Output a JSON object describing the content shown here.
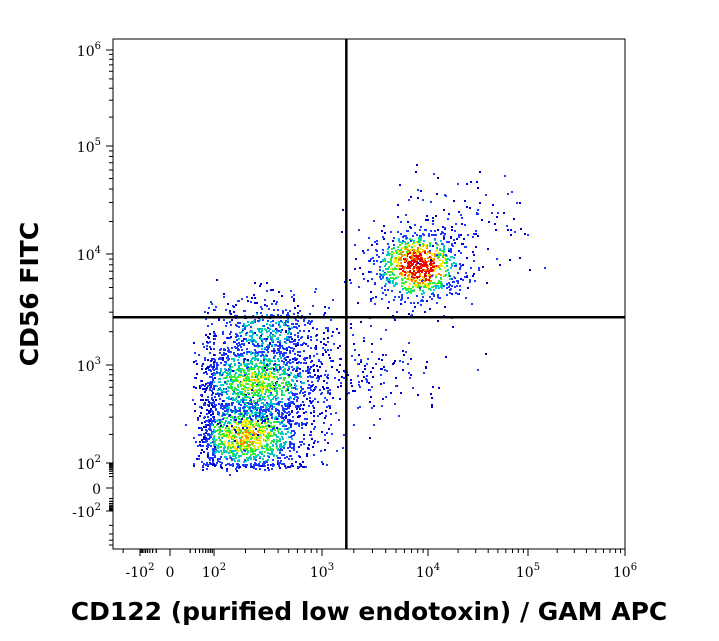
{
  "chart_data": {
    "type": "scatter",
    "title": "",
    "xlabel": "CD122 (purified low endotoxin) / GAM APC",
    "ylabel": "CD56 FITC",
    "x_scale": "biexponential",
    "y_scale": "biexponential",
    "xlim": [
      -300,
      1000000
    ],
    "ylim": [
      -600,
      1000000
    ],
    "grid": false,
    "density_colors": [
      "#0000cc",
      "#1e3cff",
      "#00c8c8",
      "#33ee33",
      "#ffee00",
      "#ff8800",
      "#ee0000"
    ],
    "x_ticks": [
      {
        "value": -100,
        "base": "-10",
        "exp": "2"
      },
      {
        "value": 0,
        "base": "0",
        "exp": ""
      },
      {
        "value": 100,
        "base": "10",
        "exp": "2"
      },
      {
        "value": 1000,
        "base": "10",
        "exp": "3"
      },
      {
        "value": 10000,
        "base": "10",
        "exp": "4"
      },
      {
        "value": 100000,
        "base": "10",
        "exp": "5"
      },
      {
        "value": 1000000,
        "base": "10",
        "exp": "6"
      }
    ],
    "y_ticks": [
      {
        "value": -100,
        "base": "-10",
        "exp": "2"
      },
      {
        "value": 0,
        "base": "0",
        "exp": ""
      },
      {
        "value": 100,
        "base": "10",
        "exp": "2"
      },
      {
        "value": 1000,
        "base": "10",
        "exp": "3"
      },
      {
        "value": 10000,
        "base": "10",
        "exp": "4"
      },
      {
        "value": 100000,
        "base": "10",
        "exp": "5"
      },
      {
        "value": 1000000,
        "base": "10",
        "exp": "6"
      }
    ],
    "quadrant_gate": {
      "x": 1700,
      "y": 2700
    },
    "populations": [
      {
        "label": "",
        "center": [
          200,
          200
        ],
        "spread": [
          0.3,
          0.22
        ],
        "count": 1300,
        "peak_density": 0.65
      },
      {
        "label": "",
        "center": [
          250,
          700
        ],
        "spread": [
          0.33,
          0.22
        ],
        "count": 1300,
        "peak_density": 0.55
      },
      {
        "label": "",
        "center": [
          300,
          2000
        ],
        "spread": [
          0.3,
          0.18
        ],
        "count": 450,
        "peak_density": 0.35
      },
      {
        "label": "",
        "center": [
          8000,
          8000
        ],
        "spread": [
          0.22,
          0.17
        ],
        "count": 900,
        "peak_density": 1.0
      },
      {
        "label": "",
        "center": [
          2500,
          800
        ],
        "spread": [
          0.4,
          0.2
        ],
        "count": 150,
        "peak_density": 0.1
      },
      {
        "label": "",
        "center": [
          20000,
          20000
        ],
        "spread": [
          0.4,
          0.25
        ],
        "count": 120,
        "peak_density": 0.1
      }
    ]
  }
}
